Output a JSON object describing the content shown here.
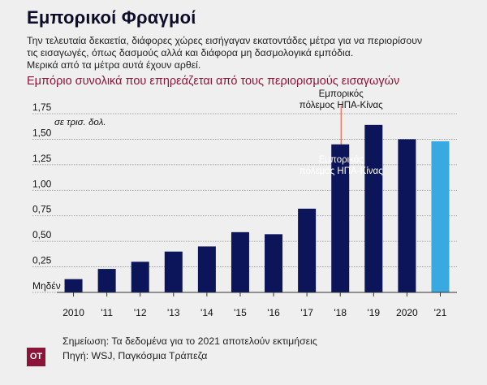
{
  "header": {
    "title": "Εμπορικοί Φραγμοί",
    "subtitle_lines": [
      "Την τελευταία δεκαετία, διάφορες χώρες εισήγαγαν εκατοντάδες μέτρα για να περιορίσουν",
      "τις εισαγωγές, όπως δασμούς αλλά και διάφορα μη δασμολογικά εμπόδια.",
      "Μερικά από τα μέτρα αυτά έχουν αρθεί."
    ]
  },
  "chart_title": "Εμπόριο συνολικά που επηρεάζεται από τους περιορισμούς εισαγωγών",
  "chart_data": {
    "type": "bar",
    "title": "Εμπόριο συνολικά που επηρεάζεται από τους περιορισμούς εισαγωγών",
    "ylabel": "σε τρισ. δολ.",
    "xlabel": "",
    "ylim": [
      0,
      1.75
    ],
    "yticks": [
      0,
      0.25,
      0.5,
      0.75,
      1.0,
      1.25,
      1.5,
      1.75
    ],
    "ytick_labels": [
      "Μηδέν",
      "0,25",
      "0,50",
      "0,75",
      "1,00",
      "1,25",
      "1,50",
      "1,75"
    ],
    "categories": [
      "2010",
      "'11",
      "'12",
      "'13",
      "'14",
      "'15",
      "'16",
      "'17",
      "'18",
      "'19",
      "2020",
      "'21"
    ],
    "values": [
      0.13,
      0.23,
      0.3,
      0.4,
      0.45,
      0.59,
      0.57,
      0.82,
      1.45,
      1.64,
      1.5,
      1.48
    ],
    "estimated": [
      false,
      false,
      false,
      false,
      false,
      false,
      false,
      false,
      false,
      false,
      false,
      true
    ],
    "grid": true,
    "annotation": {
      "line1": "Εμπορικός",
      "line2": "πόλεμος ΗΠΑ-Κίνας",
      "category": "'18",
      "inside_line1": "Εμπορικός",
      "inside_line2": "πόλεμος ΗΠΑ-Κίνας"
    },
    "colors": {
      "bar": "#0c1559",
      "estimate_bar": "#39a9e1",
      "annotation_line": "#e0502f",
      "grid": "#8c8c8c",
      "axis_text": "#111111"
    }
  },
  "footer": {
    "logo_text": "OT",
    "note": "Σημείωση: Τα δεδομένα για το 2021 αποτελούν εκτιμήσεις",
    "source": "Πηγή: WSJ, Παγκόσμια Τράπεζα"
  }
}
